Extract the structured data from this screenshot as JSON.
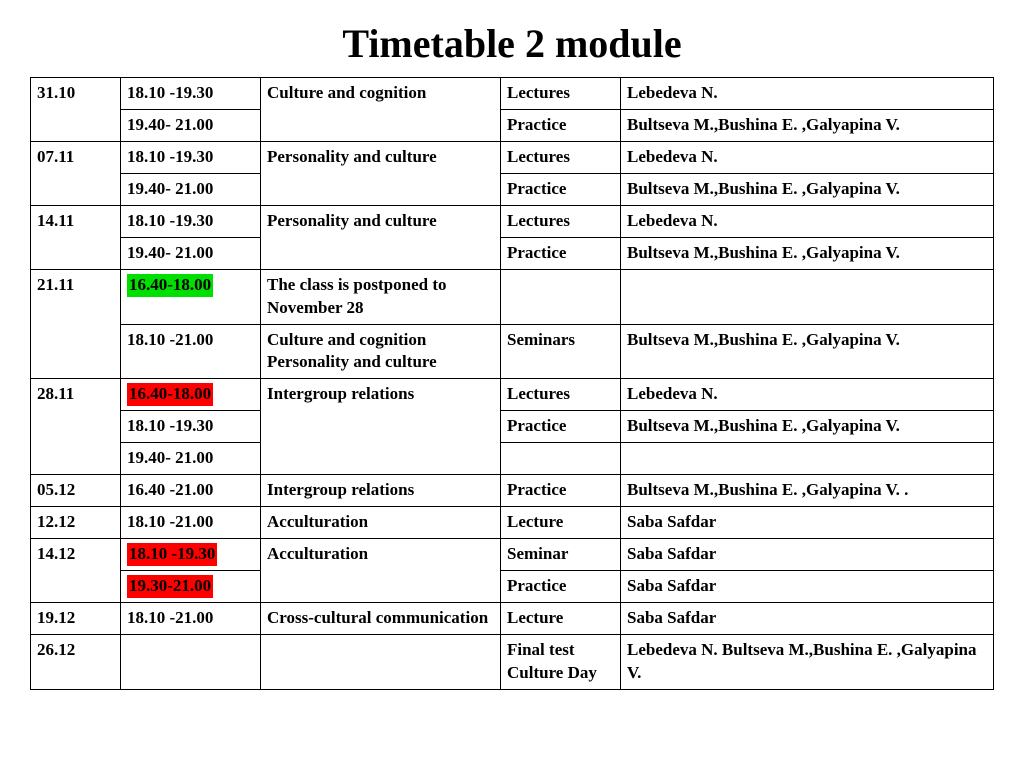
{
  "title": "Timetable 2 module",
  "colors": {
    "highlight_green": "#00e000",
    "highlight_red": "#ff0000",
    "text": "#000000",
    "border": "#000000",
    "background": "#ffffff"
  },
  "columns": [
    "date",
    "time",
    "topic",
    "type",
    "people"
  ],
  "rows": [
    {
      "date": "31.10",
      "time": "18.10 -19.30",
      "topic": "Culture and cognition",
      "type": "Lectures",
      "people": "Lebedeva N.",
      "date_rowspan": 2,
      "topic_rowspan": 2
    },
    {
      "time": "19.40- 21.00",
      "type": "Practice",
      "people": "Bultseva M.,Bushina E. ,Galyapina V."
    },
    {
      "date": "07.11",
      "time": "18.10 -19.30",
      "topic": "Personality and culture",
      "type": "Lectures",
      "people": "Lebedeva N.",
      "date_rowspan": 2,
      "topic_rowspan": 2
    },
    {
      "time": "19.40- 21.00",
      "type": "Practice",
      "people": "Bultseva M.,Bushina E. ,Galyapina V."
    },
    {
      "date": "14.11",
      "time": "18.10 -19.30",
      "topic": "Personality and culture",
      "type": "Lectures",
      "people": "Lebedeva N.",
      "date_rowspan": 2,
      "topic_rowspan": 2
    },
    {
      "time": "19.40- 21.00",
      "type": "Practice",
      "people": "Bultseva M.,Bushina E. ,Galyapina V."
    },
    {
      "date": "21.11",
      "time": "16.40-18.00",
      "time_highlight": "green",
      "topic": "The class  is postponed to November 28",
      "type": "",
      "people": "",
      "date_rowspan": 2
    },
    {
      "time": "18.10 -21.00",
      "topic": "Culture and cognition Personality and culture",
      "type": "Seminars",
      "people": "Bultseva M.,Bushina E. ,Galyapina V."
    },
    {
      "date": "28.11",
      "time": "16.40-18.00",
      "time_highlight": "red",
      "topic": "Intergroup relations",
      "type": "Lectures",
      "people": "Lebedeva N.",
      "date_rowspan": 3,
      "topic_rowspan": 3
    },
    {
      "time": "18.10 -19.30",
      "type": "Practice",
      "people": "Bultseva M.,Bushina E. ,Galyapina V."
    },
    {
      "time": "19.40- 21.00",
      "type": "",
      "people": ""
    },
    {
      "date": "05.12",
      "time": "16.40 -21.00",
      "topic": "Intergroup relations",
      "type": "Practice",
      "people": "Bultseva M.,Bushina E. ,Galyapina V. ."
    },
    {
      "date": "12.12",
      "time": "18.10 -21.00",
      "topic": "Acculturation",
      "type": "Lecture",
      "people": "Saba Safdar"
    },
    {
      "date": "14.12",
      "time": "18.10 -19.30",
      "time_highlight": "red",
      "topic": "Acculturation",
      "type": "Seminar",
      "people": "Saba Safdar",
      "date_rowspan": 2,
      "topic_rowspan": 2
    },
    {
      "time": "19.30-21.00",
      "time_highlight": "red",
      "type": "Practice",
      "people": "Saba Safdar"
    },
    {
      "date": "19.12",
      "time": "18.10 -21.00",
      "topic": "Cross-cultural communication",
      "type": "Lecture",
      "people": "Saba Safdar"
    },
    {
      "date": "26.12",
      "time": "",
      "topic": "",
      "type": "Final test Culture Day",
      "people": "Lebedeva N. Bultseva M.,Bushina E. ,Galyapina V."
    }
  ]
}
